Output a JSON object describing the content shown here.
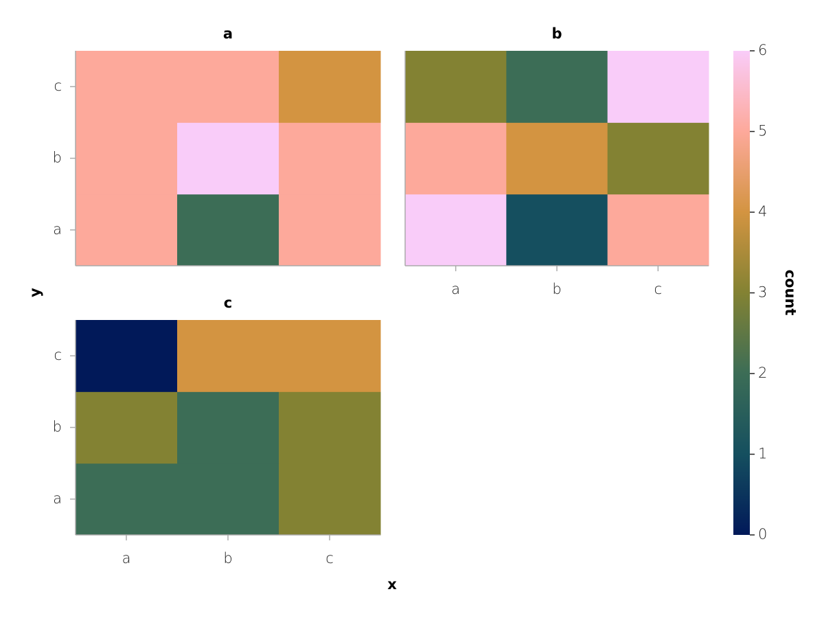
{
  "chart_data": {
    "type": "heatmap",
    "xlabel": "x",
    "ylabel": "y",
    "x_categories": [
      "a",
      "b",
      "c"
    ],
    "y_categories": [
      "a",
      "b",
      "c"
    ],
    "facets": [
      {
        "title": "a",
        "values": [
          [
            5,
            2,
            5
          ],
          [
            5,
            6,
            5
          ],
          [
            5,
            5,
            4
          ]
        ]
      },
      {
        "title": "b",
        "values": [
          [
            6,
            1,
            5
          ],
          [
            5,
            4,
            3
          ],
          [
            3,
            2,
            6
          ]
        ]
      },
      {
        "title": "c",
        "values": [
          [
            2,
            2,
            3
          ],
          [
            3,
            2,
            3
          ],
          [
            0,
            4,
            4
          ]
        ]
      }
    ],
    "colorbar_label": "count",
    "clim": [
      0,
      6
    ],
    "cticks": [
      0,
      1,
      2,
      3,
      4,
      5,
      6
    ],
    "colormap": [
      "#011959",
      "#154f5f",
      "#3c6d56",
      "#838233",
      "#d39441",
      "#fda99b",
      "#f9ccf9"
    ]
  }
}
